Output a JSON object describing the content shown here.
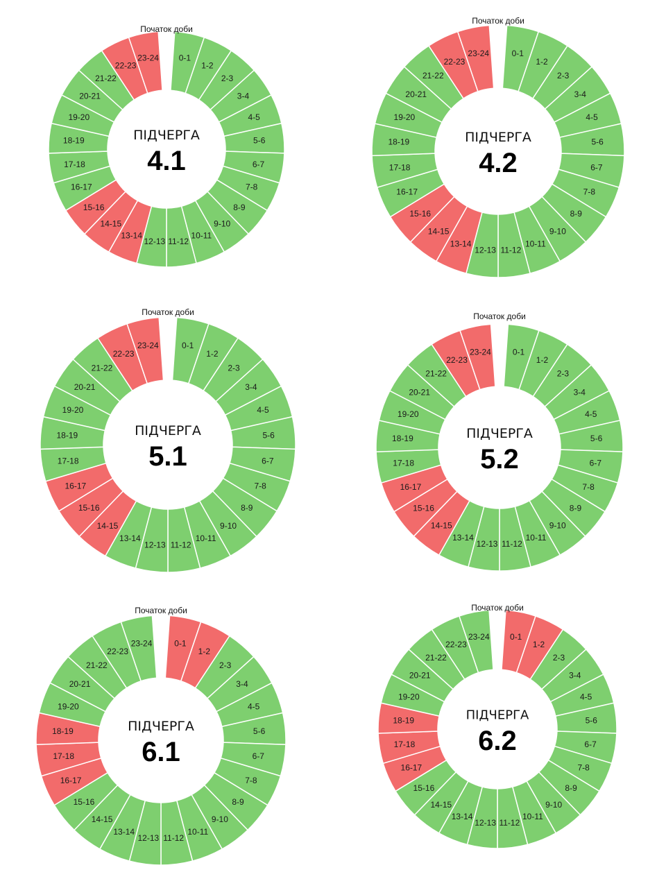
{
  "colors": {
    "on": "#7ecf6f",
    "off": "#f26b6b",
    "separator": "#ffffff"
  },
  "start_label": "Початок доби",
  "caption": "ПІДЧЕРГА",
  "hour_labels": [
    "0-1",
    "1-2",
    "2-3",
    "3-4",
    "4-5",
    "5-6",
    "6-7",
    "7-8",
    "8-9",
    "9-10",
    "10-11",
    "11-12",
    "12-13",
    "13-14",
    "14-15",
    "15-16",
    "16-17",
    "17-18",
    "18-19",
    "19-20",
    "20-21",
    "21-22",
    "22-23",
    "23-24"
  ],
  "chart_data": [
    {
      "type": "donut",
      "caption": "ПІДЧЕРГА",
      "number": "4.1",
      "start_label": "Початок доби",
      "categories": [
        "0-1",
        "1-2",
        "2-3",
        "3-4",
        "4-5",
        "5-6",
        "6-7",
        "7-8",
        "8-9",
        "9-10",
        "10-11",
        "11-12",
        "12-13",
        "13-14",
        "14-15",
        "15-16",
        "16-17",
        "17-18",
        "18-19",
        "19-20",
        "20-21",
        "21-22",
        "22-23",
        "23-24"
      ],
      "status": [
        "on",
        "on",
        "on",
        "on",
        "on",
        "on",
        "on",
        "on",
        "on",
        "on",
        "on",
        "on",
        "on",
        "off",
        "off",
        "off",
        "on",
        "on",
        "on",
        "on",
        "on",
        "on",
        "off",
        "off"
      ]
    },
    {
      "type": "donut",
      "caption": "ПІДЧЕРГА",
      "number": "4.2",
      "start_label": "Початок доби",
      "categories": [
        "0-1",
        "1-2",
        "2-3",
        "3-4",
        "4-5",
        "5-6",
        "6-7",
        "7-8",
        "8-9",
        "9-10",
        "10-11",
        "11-12",
        "12-13",
        "13-14",
        "14-15",
        "15-16",
        "16-17",
        "17-18",
        "18-19",
        "19-20",
        "20-21",
        "21-22",
        "22-23",
        "23-24"
      ],
      "status": [
        "on",
        "on",
        "on",
        "on",
        "on",
        "on",
        "on",
        "on",
        "on",
        "on",
        "on",
        "on",
        "on",
        "off",
        "off",
        "off",
        "on",
        "on",
        "on",
        "on",
        "on",
        "on",
        "off",
        "off"
      ]
    },
    {
      "type": "donut",
      "caption": "ПІДЧЕРГА",
      "number": "5.1",
      "start_label": "Початок доби",
      "categories": [
        "0-1",
        "1-2",
        "2-3",
        "3-4",
        "4-5",
        "5-6",
        "6-7",
        "7-8",
        "8-9",
        "9-10",
        "10-11",
        "11-12",
        "12-13",
        "13-14",
        "14-15",
        "15-16",
        "16-17",
        "17-18",
        "18-19",
        "19-20",
        "20-21",
        "21-22",
        "22-23",
        "23-24"
      ],
      "status": [
        "on",
        "on",
        "on",
        "on",
        "on",
        "on",
        "on",
        "on",
        "on",
        "on",
        "on",
        "on",
        "on",
        "on",
        "off",
        "off",
        "off",
        "on",
        "on",
        "on",
        "on",
        "on",
        "off",
        "off"
      ]
    },
    {
      "type": "donut",
      "caption": "ПІДЧЕРГА",
      "number": "5.2",
      "start_label": "Початок доби",
      "categories": [
        "0-1",
        "1-2",
        "2-3",
        "3-4",
        "4-5",
        "5-6",
        "6-7",
        "7-8",
        "8-9",
        "9-10",
        "10-11",
        "11-12",
        "12-13",
        "13-14",
        "14-15",
        "15-16",
        "16-17",
        "17-18",
        "18-19",
        "19-20",
        "20-21",
        "21-22",
        "22-23",
        "23-24"
      ],
      "status": [
        "on",
        "on",
        "on",
        "on",
        "on",
        "on",
        "on",
        "on",
        "on",
        "on",
        "on",
        "on",
        "on",
        "on",
        "off",
        "off",
        "off",
        "on",
        "on",
        "on",
        "on",
        "on",
        "off",
        "off"
      ]
    },
    {
      "type": "donut",
      "caption": "ПІДЧЕРГА",
      "number": "6.1",
      "start_label": "Початок доби",
      "categories": [
        "0-1",
        "1-2",
        "2-3",
        "3-4",
        "4-5",
        "5-6",
        "6-7",
        "7-8",
        "8-9",
        "9-10",
        "10-11",
        "11-12",
        "12-13",
        "13-14",
        "14-15",
        "15-16",
        "16-17",
        "17-18",
        "18-19",
        "19-20",
        "20-21",
        "21-22",
        "22-23",
        "23-24"
      ],
      "status": [
        "off",
        "off",
        "on",
        "on",
        "on",
        "on",
        "on",
        "on",
        "on",
        "on",
        "on",
        "on",
        "on",
        "on",
        "on",
        "on",
        "off",
        "off",
        "off",
        "on",
        "on",
        "on",
        "on",
        "on"
      ]
    },
    {
      "type": "donut",
      "caption": "ПІДЧЕРГА",
      "number": "6.2",
      "start_label": "Початок доби",
      "categories": [
        "0-1",
        "1-2",
        "2-3",
        "3-4",
        "4-5",
        "5-6",
        "6-7",
        "7-8",
        "8-9",
        "9-10",
        "10-11",
        "11-12",
        "12-13",
        "13-14",
        "14-15",
        "15-16",
        "16-17",
        "17-18",
        "18-19",
        "19-20",
        "20-21",
        "21-22",
        "22-23",
        "23-24"
      ],
      "status": [
        "off",
        "off",
        "on",
        "on",
        "on",
        "on",
        "on",
        "on",
        "on",
        "on",
        "on",
        "on",
        "on",
        "on",
        "on",
        "on",
        "off",
        "off",
        "off",
        "on",
        "on",
        "on",
        "on",
        "on"
      ]
    }
  ]
}
